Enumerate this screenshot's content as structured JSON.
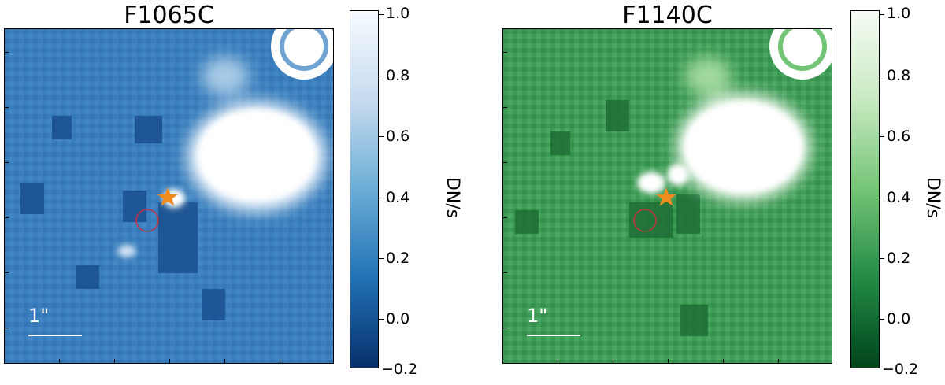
{
  "panels": [
    {
      "title": "F1065C",
      "colormap": "blues",
      "scale_label": "1\"",
      "colorbar": {
        "ticks": [
          "1.0",
          "0.8",
          "0.6",
          "0.4",
          "0.2",
          "0.0",
          "−0.2"
        ],
        "unit": "DN/s",
        "top_color": "#f7fbff",
        "bottom_color": "#08306b"
      }
    },
    {
      "title": "F1140C",
      "colormap": "greens",
      "scale_label": "1\"",
      "colorbar": {
        "ticks": [
          "1.0",
          "0.8",
          "0.6",
          "0.4",
          "0.2",
          "0.0",
          "−0.2"
        ],
        "unit": "DN/s",
        "top_color": "#f7fcf5",
        "bottom_color": "#00441b"
      }
    }
  ],
  "markers": {
    "star_color": "#f08c1e",
    "circle_color": "#c8323c"
  }
}
